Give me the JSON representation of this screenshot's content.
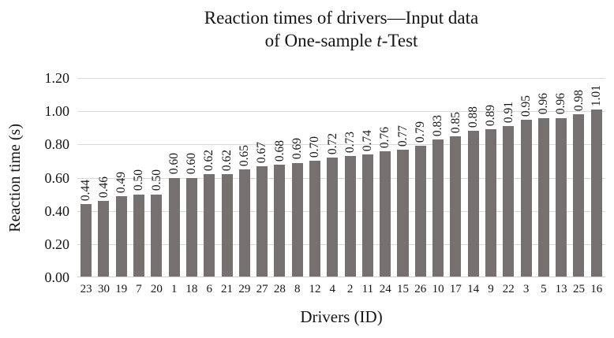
{
  "title": {
    "line1": "Reaction times of drivers—Input data",
    "line2": {
      "pre": "of One-sample ",
      "italic": "t",
      "post": "-Test"
    }
  },
  "chart_data": {
    "type": "bar",
    "title": "Reaction times of drivers—Input data of One-sample t-Test",
    "xlabel": "Drivers (ID)",
    "ylabel": "Reaction time (s)",
    "ylim": [
      0,
      1.2
    ],
    "y_tick_labels": [
      "1.20",
      "1.00",
      "0.80",
      "0.60",
      "0.40",
      "0.20",
      "0.00"
    ],
    "grid": true,
    "legend_position": "none",
    "bar_color": "#767171",
    "gridline_color": "#d9d9d9",
    "categories": [
      "23",
      "30",
      "19",
      "7",
      "20",
      "1",
      "18",
      "6",
      "21",
      "29",
      "27",
      "28",
      "8",
      "12",
      "4",
      "2",
      "11",
      "24",
      "15",
      "26",
      "10",
      "17",
      "14",
      "9",
      "22",
      "3",
      "5",
      "13",
      "25",
      "16"
    ],
    "values": [
      0.44,
      0.46,
      0.49,
      0.5,
      0.5,
      0.6,
      0.6,
      0.62,
      0.62,
      0.65,
      0.67,
      0.68,
      0.69,
      0.7,
      0.72,
      0.73,
      0.74,
      0.76,
      0.77,
      0.79,
      0.83,
      0.85,
      0.88,
      0.89,
      0.91,
      0.95,
      0.96,
      0.96,
      0.98,
      1.01
    ],
    "value_labels": [
      "0.44",
      "0.46",
      "0.49",
      "0.50",
      "0.50",
      "0.60",
      "0.60",
      "0.62",
      "0.62",
      "0.65",
      "0.67",
      "0.68",
      "0.69",
      "0.70",
      "0.72",
      "0.73",
      "0.74",
      "0.76",
      "0.77",
      "0.79",
      "0.83",
      "0.85",
      "0.88",
      "0.89",
      "0.91",
      "0.95",
      "0.96",
      "0.96",
      "0.98",
      "1.01"
    ]
  }
}
